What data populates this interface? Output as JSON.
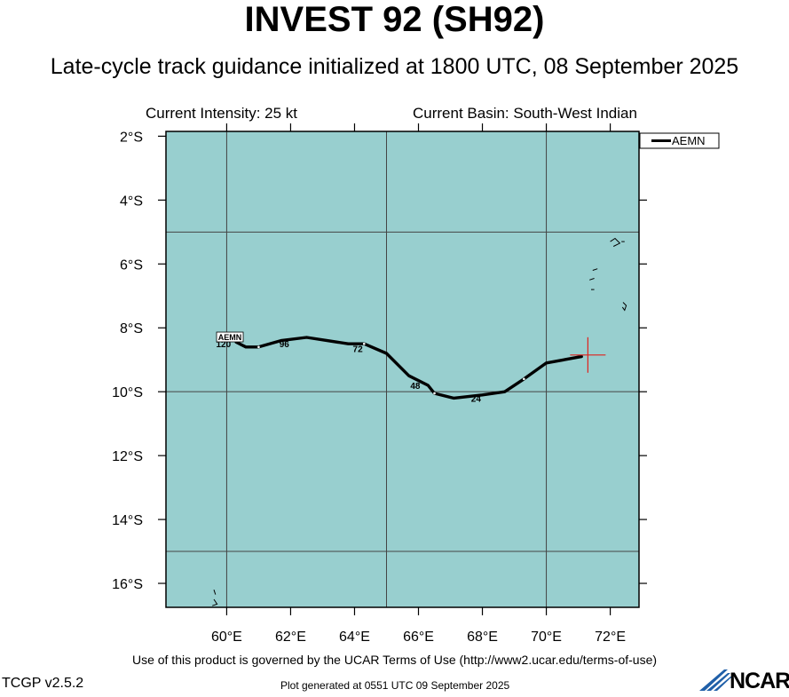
{
  "title": "INVEST 92 (SH92)",
  "subtitle": "Late-cycle track guidance initialized at 1800 UTC, 08 September 2025",
  "current_intensity": "Current Intensity: 25 kt",
  "current_basin": "Current Basin: South-West Indian",
  "terms": "Use of this product is governed by the UCAR Terms of Use (http://www2.ucar.edu/terms-of-use)",
  "version": "TCGP v2.5.2",
  "generated": "Plot generated at 0551 UTC   09 September 2025",
  "logo_text": "NCAR",
  "colors": {
    "ocean": "#98cfcf",
    "track": "#000000",
    "current_position": "#e0201c",
    "grid": "#444444"
  },
  "map": {
    "lon_range": [
      58.1,
      72.9
    ],
    "lat_range": [
      -16.75,
      -1.85
    ],
    "lat_ticks": [
      {
        "value": -2,
        "label": "2°S"
      },
      {
        "value": -4,
        "label": "4°S"
      },
      {
        "value": -6,
        "label": "6°S"
      },
      {
        "value": -8,
        "label": "8°S"
      },
      {
        "value": -10,
        "label": "10°S"
      },
      {
        "value": -12,
        "label": "12°S"
      },
      {
        "value": -14,
        "label": "14°S"
      },
      {
        "value": -16,
        "label": "16°S"
      }
    ],
    "lon_ticks": [
      {
        "value": 60,
        "label": "60°E"
      },
      {
        "value": 62,
        "label": "62°E"
      },
      {
        "value": 64,
        "label": "64°E"
      },
      {
        "value": 66,
        "label": "66°E"
      },
      {
        "value": 68,
        "label": "68°E"
      },
      {
        "value": 70,
        "label": "70°E"
      },
      {
        "value": 72,
        "label": "72°E"
      }
    ],
    "grid_lons": [
      60,
      65,
      70
    ],
    "grid_lats": [
      -5,
      -10,
      -15
    ],
    "legend": [
      {
        "name": "AEMN"
      }
    ],
    "current_position": {
      "lon": 71.3,
      "lat": -8.85
    },
    "tracks": [
      {
        "name": "AEMN",
        "points": [
          {
            "lon": 71.1,
            "lat": -8.9
          },
          {
            "lon": 70.0,
            "lat": -9.1
          },
          {
            "lon": 69.3,
            "lat": -9.6
          },
          {
            "lon": 68.7,
            "lat": -10.0
          },
          {
            "lon": 68.0,
            "lat": -10.1
          },
          {
            "lon": 67.1,
            "lat": -10.2
          },
          {
            "lon": 66.5,
            "lat": -10.05
          },
          {
            "lon": 66.3,
            "lat": -9.8
          },
          {
            "lon": 65.7,
            "lat": -9.5
          },
          {
            "lon": 65.0,
            "lat": -8.8
          },
          {
            "lon": 64.3,
            "lat": -8.5
          },
          {
            "lon": 63.8,
            "lat": -8.5
          },
          {
            "lon": 62.5,
            "lat": -8.3
          },
          {
            "lon": 61.7,
            "lat": -8.4
          },
          {
            "lon": 61.0,
            "lat": -8.6
          },
          {
            "lon": 60.6,
            "lat": -8.6
          },
          {
            "lon": 60.3,
            "lat": -8.45
          }
        ],
        "tau_labels": [
          {
            "label": "24",
            "lon": 67.8,
            "lat": -10.2
          },
          {
            "label": "48",
            "lon": 65.9,
            "lat": -9.8
          },
          {
            "label": "72",
            "lon": 64.1,
            "lat": -8.65
          },
          {
            "label": "96",
            "lon": 61.8,
            "lat": -8.5
          },
          {
            "label": "120",
            "lon": 59.9,
            "lat": -8.5
          }
        ],
        "end_label": {
          "label": "AEMN",
          "lon": 60.1,
          "lat": -8.3
        }
      }
    ],
    "islands": [
      {
        "name": "chagos-north",
        "points": [
          [
            72.0,
            -5.3
          ],
          [
            72.15,
            -5.2
          ],
          [
            72.3,
            -5.35
          ],
          [
            72.1,
            -5.45
          ]
        ]
      },
      {
        "name": "chagos-east",
        "points": [
          [
            72.35,
            -5.3
          ],
          [
            72.45,
            -5.3
          ]
        ]
      },
      {
        "name": "chagos-mid-a",
        "points": [
          [
            71.45,
            -6.2
          ],
          [
            71.6,
            -6.15
          ]
        ]
      },
      {
        "name": "chagos-mid-b",
        "points": [
          [
            71.35,
            -6.5
          ],
          [
            71.5,
            -6.45
          ]
        ]
      },
      {
        "name": "chagos-mid-c",
        "points": [
          [
            71.4,
            -6.8
          ],
          [
            71.5,
            -6.8
          ]
        ]
      },
      {
        "name": "diego-garcia",
        "points": [
          [
            72.4,
            -7.2
          ],
          [
            72.5,
            -7.3
          ],
          [
            72.45,
            -7.45
          ],
          [
            72.38,
            -7.35
          ]
        ]
      },
      {
        "name": "cargados-north",
        "points": [
          [
            59.6,
            -16.2
          ],
          [
            59.65,
            -16.35
          ]
        ]
      },
      {
        "name": "cargados-south",
        "points": [
          [
            59.6,
            -16.5
          ],
          [
            59.7,
            -16.65
          ],
          [
            59.55,
            -16.7
          ]
        ]
      }
    ]
  }
}
